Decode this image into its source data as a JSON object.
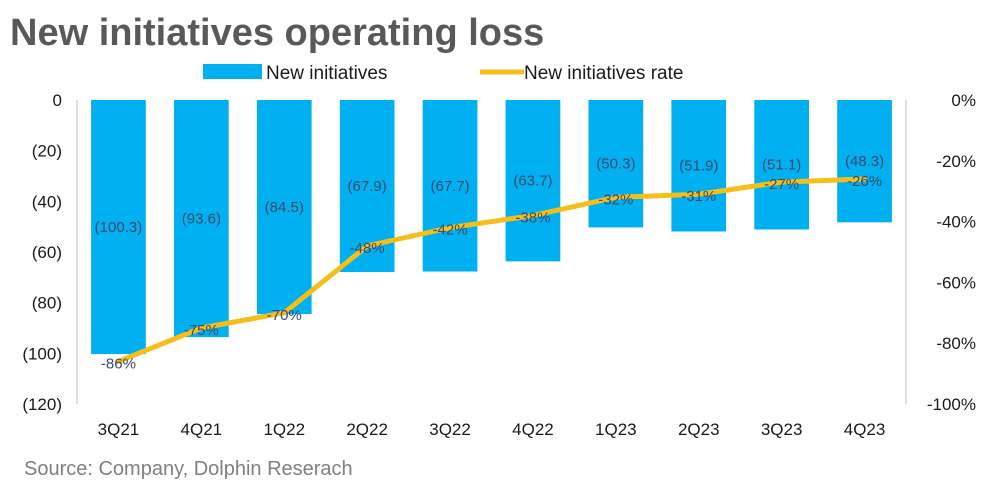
{
  "title": "New initiatives operating loss",
  "source": "Source: Company,  Dolphin Reserach",
  "chart_data": {
    "type": "bar",
    "categories": [
      "3Q21",
      "4Q21",
      "1Q22",
      "2Q22",
      "3Q22",
      "4Q22",
      "1Q23",
      "2Q23",
      "3Q23",
      "4Q23"
    ],
    "series": [
      {
        "name": "New initiatives",
        "type": "bar",
        "axis": "left",
        "color": "#00B0F0",
        "values": [
          -100.3,
          -93.6,
          -84.5,
          -67.9,
          -67.7,
          -63.7,
          -50.3,
          -51.9,
          -51.1,
          -48.3
        ],
        "labels": [
          "(100.3)",
          "(93.6)",
          "(84.5)",
          "(67.9)",
          "(67.7)",
          "(63.7)",
          "(50.3)",
          "(51.9)",
          "(51.1)",
          "(48.3)"
        ]
      },
      {
        "name": "New initiatives rate",
        "type": "line",
        "axis": "right",
        "color": "#F5BE1B",
        "values": [
          -86,
          -75,
          -70,
          -48,
          -42,
          -38,
          -32,
          -31,
          -27,
          -26
        ],
        "labels": [
          "-86%",
          "-75%",
          "-70%",
          "-48%",
          "-42%",
          "-38%",
          "-32%",
          "-31%",
          "-27%",
          "-26%"
        ]
      }
    ],
    "y_left": {
      "range": [
        -120,
        0
      ],
      "ticks": [
        0,
        -20,
        -40,
        -60,
        -80,
        -100,
        -120
      ],
      "tick_labels": [
        "0",
        "(20)",
        "(40)",
        "(60)",
        "(80)",
        "(100)",
        "(120)"
      ]
    },
    "y_right": {
      "range": [
        -100,
        0
      ],
      "ticks": [
        0,
        -20,
        -40,
        -60,
        -80,
        -100
      ],
      "tick_labels": [
        "0%",
        "-20%",
        "-40%",
        "-60%",
        "-80%",
        "-100%"
      ]
    },
    "legend_position": "top",
    "grid": false
  }
}
